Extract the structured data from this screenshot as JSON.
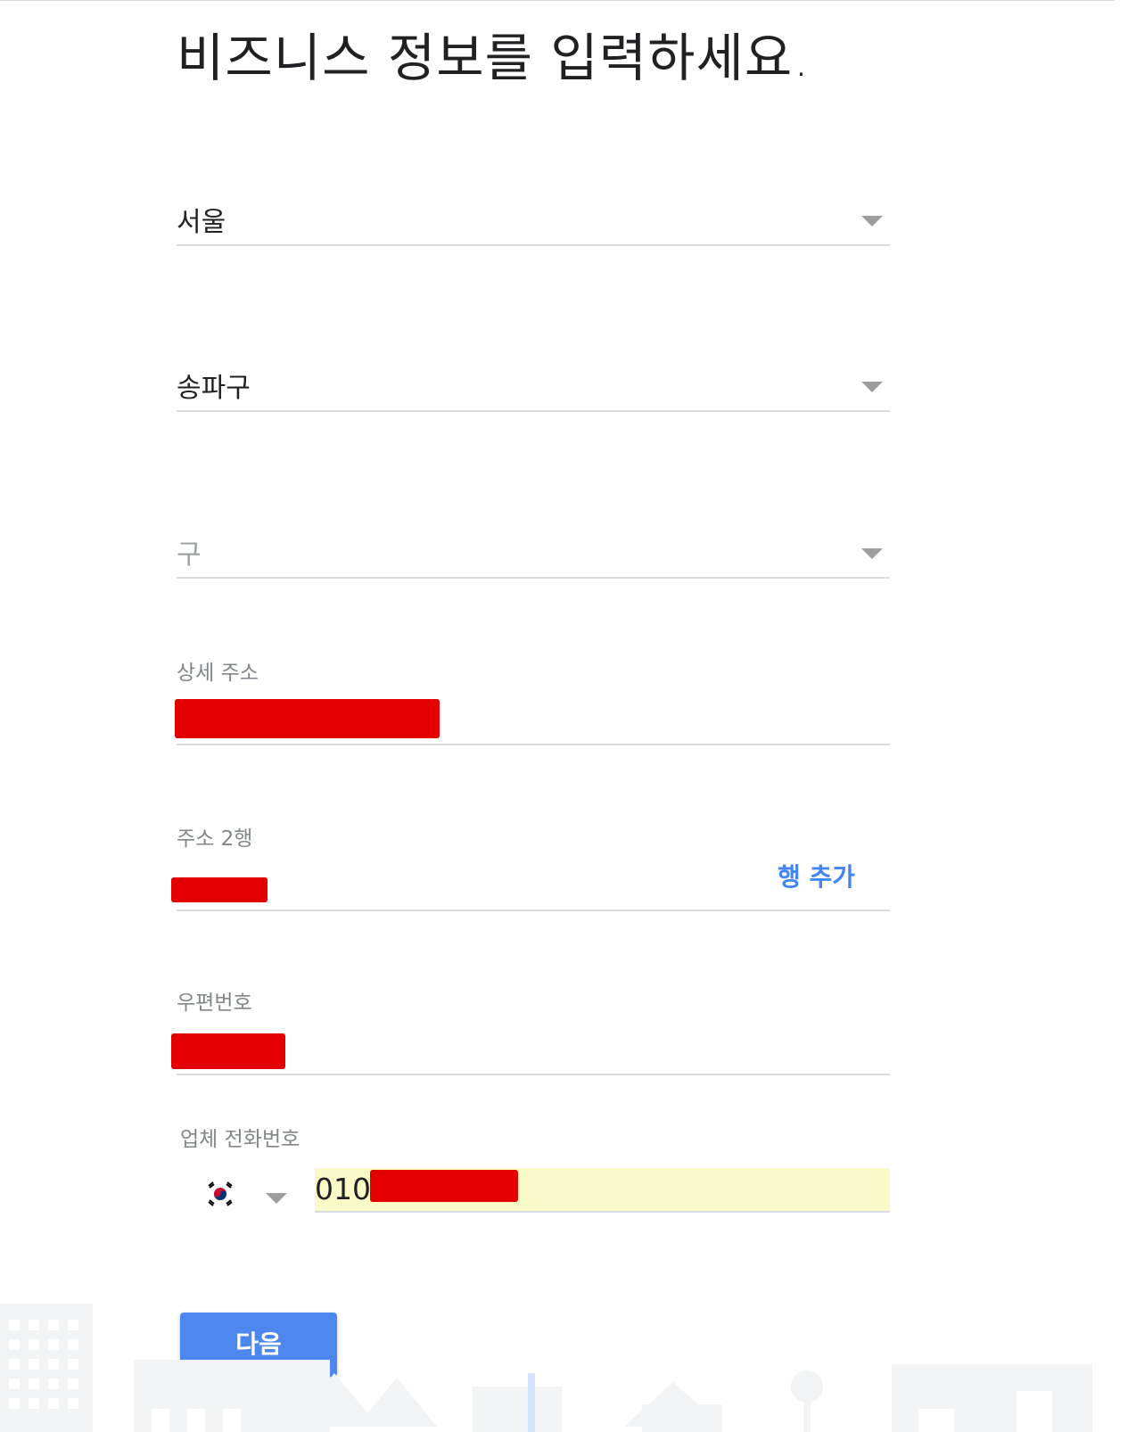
{
  "page": {
    "title": "비즈니스 정보를 입력하세요."
  },
  "form": {
    "city": {
      "value": "서울"
    },
    "district": {
      "value": "송파구"
    },
    "gu": {
      "placeholder": "구"
    },
    "address_detail": {
      "label": "상세 주소"
    },
    "address_line2": {
      "label": "주소 2행",
      "add_line_label": "행 추가"
    },
    "postal_code": {
      "label": "우편번호"
    },
    "phone": {
      "label": "업체 전화번호",
      "country_flag": "south-korea-flag",
      "value_prefix": "010"
    }
  },
  "actions": {
    "next_label": "다음"
  },
  "colors": {
    "accent": "#4285f4",
    "button": "#4d86ec",
    "redaction": "#e30000",
    "autofill": "#fafac8"
  }
}
